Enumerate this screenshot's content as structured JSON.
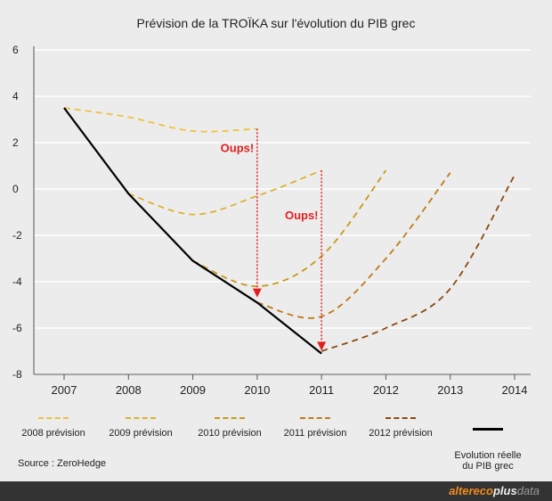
{
  "chart_data": {
    "type": "line",
    "title": "Prévision de la TROÏKA sur l'évolution du PIB grec",
    "categories": [
      "2007",
      "2008",
      "2009",
      "2010",
      "2011",
      "2012",
      "2013",
      "2014"
    ],
    "ylim": [
      -8,
      6
    ],
    "yticks": [
      "6",
      "4",
      "2",
      "0",
      "-2",
      "-4",
      "-6",
      "-8"
    ],
    "grid": true,
    "legend_position": "bottom",
    "series": [
      {
        "name": "2008  prévision",
        "color": "#f0c040",
        "style": "dashed",
        "x": [
          2007,
          2008,
          2009,
          2010
        ],
        "y": [
          3.5,
          3.1,
          2.5,
          2.6
        ]
      },
      {
        "name": "2009 prévision",
        "color": "#e0b030",
        "style": "dashed",
        "x": [
          2008,
          2009,
          2010,
          2011
        ],
        "y": [
          -0.2,
          -1.1,
          -0.3,
          0.8
        ]
      },
      {
        "name": "2010 prévision",
        "color": "#c89818",
        "style": "dashed",
        "x": [
          2009,
          2010,
          2011,
          2012
        ],
        "y": [
          -3.1,
          -4.2,
          -2.9,
          0.8
        ]
      },
      {
        "name": "2011 prévision",
        "color": "#c07a18",
        "style": "dashed",
        "x": [
          2010,
          2011,
          2012,
          2013
        ],
        "y": [
          -4.9,
          -5.5,
          -3.0,
          0.7
        ]
      },
      {
        "name": "2012 prévision",
        "color": "#8a4a10",
        "style": "dashed",
        "x": [
          2011,
          2012,
          2013,
          2014
        ],
        "y": [
          -7.0,
          -6.0,
          -4.3,
          0.6
        ]
      },
      {
        "name": "Evolution réelle du PIB grec",
        "color": "#000000",
        "style": "solid",
        "x": [
          2007,
          2008,
          2009,
          2010,
          2011
        ],
        "y": [
          3.5,
          -0.2,
          -3.1,
          -4.9,
          -7.1
        ]
      }
    ],
    "annotations": [
      {
        "text": "Oups!",
        "x": 2009.95,
        "y": 1.6,
        "color": "#e02020"
      },
      {
        "text": "Oups!",
        "x": 2010.95,
        "y": -1.3,
        "color": "#e02020"
      }
    ],
    "arrows": [
      {
        "x": 2010,
        "from": 2.6,
        "to": -4.6,
        "color": "#e02020"
      },
      {
        "x": 2011,
        "from": 0.8,
        "to": -6.9,
        "color": "#e02020"
      }
    ]
  },
  "legend": {
    "items": [
      {
        "label": "2008  prévision",
        "color": "#f0c040",
        "style": "dash"
      },
      {
        "label": "2009 prévision",
        "color": "#e0b030",
        "style": "dash"
      },
      {
        "label": "2010 prévision",
        "color": "#c89818",
        "style": "dash"
      },
      {
        "label": "2011 prévision",
        "color": "#c07a18",
        "style": "dash"
      },
      {
        "label": "2012 prévision",
        "color": "#8a4a10",
        "style": "dash"
      },
      {
        "label": "Evolution réelle\ndu PIB grec",
        "color": "#000000",
        "style": "solid"
      }
    ]
  },
  "source": "Source : ZeroHedge",
  "footer": {
    "brand_part1": "altereco",
    "brand_part2": "plus",
    "brand_part3": "data"
  }
}
